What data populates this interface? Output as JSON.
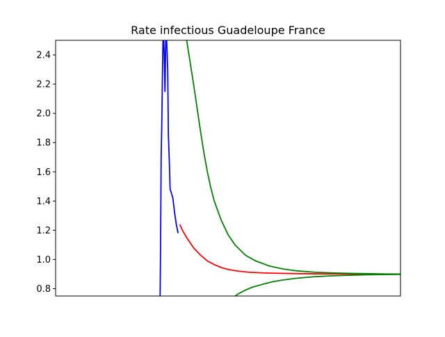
{
  "chart_data": {
    "type": "line",
    "title": "Rate infectious Guadeloupe France",
    "xlabel": "",
    "ylabel": "",
    "xlim": [
      0,
      100
    ],
    "ylim": [
      0.75,
      2.5
    ],
    "x_ticks_visible": false,
    "yticks": [
      {
        "value": 0.8,
        "label": "0.8"
      },
      {
        "value": 1.0,
        "label": "1.0"
      },
      {
        "value": 1.2,
        "label": "1.2"
      },
      {
        "value": 1.4,
        "label": "1.4"
      },
      {
        "value": 1.6,
        "label": "1.6"
      },
      {
        "value": 1.8,
        "label": "1.8"
      },
      {
        "value": 2.0,
        "label": "2.0"
      },
      {
        "value": 2.2,
        "label": "2.2"
      },
      {
        "value": 2.4,
        "label": "2.4"
      }
    ],
    "grid": false,
    "legend": "none",
    "series": [
      {
        "color": "#0000ff",
        "x": [
          30.3,
          30.4,
          30.5,
          30.6,
          30.8,
          31.0,
          31.2,
          31.5,
          31.7,
          32.0,
          32.2,
          32.5,
          32.7,
          33.0,
          33.2,
          33.5,
          34.0,
          34.5,
          35.0,
          35.5
        ],
        "y": [
          0.75,
          1.0,
          1.35,
          1.7,
          1.95,
          2.3,
          2.6,
          2.4,
          2.15,
          2.6,
          2.5,
          2.3,
          1.85,
          1.65,
          1.48,
          1.46,
          1.42,
          1.32,
          1.24,
          1.18
        ]
      },
      {
        "color": "#ff0000",
        "x": [
          36.0,
          37,
          38,
          40,
          42,
          44,
          46,
          48,
          50,
          53,
          56,
          60,
          65,
          70,
          75,
          80,
          85,
          90,
          95,
          100
        ],
        "y": [
          1.24,
          1.19,
          1.15,
          1.08,
          1.03,
          0.99,
          0.965,
          0.945,
          0.932,
          0.92,
          0.913,
          0.908,
          0.905,
          0.903,
          0.902,
          0.901,
          0.9005,
          0.9003,
          0.9001,
          0.9
        ]
      },
      {
        "color": "#008000",
        "x": [
          38,
          39,
          40,
          41,
          42,
          43,
          44,
          45,
          46,
          48,
          50,
          52,
          55,
          58,
          62,
          66,
          70,
          75,
          80,
          85,
          90,
          95,
          100
        ],
        "y": [
          2.5,
          2.35,
          2.2,
          2.04,
          1.88,
          1.73,
          1.6,
          1.49,
          1.4,
          1.27,
          1.17,
          1.1,
          1.03,
          0.99,
          0.955,
          0.935,
          0.922,
          0.913,
          0.908,
          0.905,
          0.903,
          0.901,
          0.9
        ]
      },
      {
        "color": "#008000",
        "x": [
          52,
          53,
          55,
          57,
          60,
          63,
          66,
          70,
          75,
          80,
          85,
          90,
          95,
          100
        ],
        "y": [
          0.75,
          0.765,
          0.79,
          0.81,
          0.83,
          0.848,
          0.86,
          0.872,
          0.882,
          0.888,
          0.892,
          0.895,
          0.897,
          0.898
        ]
      }
    ]
  }
}
